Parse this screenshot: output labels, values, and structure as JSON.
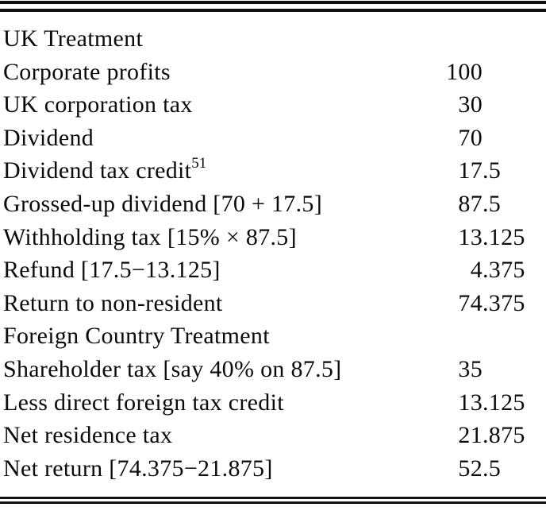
{
  "rows": [
    {
      "label": "UK Treatment",
      "sup": "",
      "int": "",
      "frac": ""
    },
    {
      "label": "Corporate profits",
      "sup": "",
      "int": "100",
      "frac": ""
    },
    {
      "label": "UK corporation tax",
      "sup": "",
      "int": "30",
      "frac": ""
    },
    {
      "label": "Dividend",
      "sup": "",
      "int": "70",
      "frac": ""
    },
    {
      "label": "Dividend tax credit",
      "sup": "51",
      "int": "17",
      "frac": ".5"
    },
    {
      "label": "Grossed-up dividend [70 + 17.5]",
      "sup": "",
      "int": "87",
      "frac": ".5"
    },
    {
      "label": "Withholding tax [15% × 87.5]",
      "sup": "",
      "int": "13",
      "frac": ".125"
    },
    {
      "label": "Refund [17.5−13.125]",
      "sup": "",
      "int": "4",
      "frac": ".375"
    },
    {
      "label": "Return to non-resident",
      "sup": "",
      "int": "74",
      "frac": ".375"
    },
    {
      "label": "Foreign Country Treatment",
      "sup": "",
      "int": "",
      "frac": ""
    },
    {
      "label": "Shareholder tax [say 40% on 87.5]",
      "sup": "",
      "int": "35",
      "frac": ""
    },
    {
      "label": "Less direct foreign tax credit",
      "sup": "",
      "int": "13",
      "frac": ".125"
    },
    {
      "label": "Net residence tax",
      "sup": "",
      "int": "21",
      "frac": ".875"
    },
    {
      "label": "Net return [74.375−21.875]",
      "sup": "",
      "int": "52",
      "frac": ".5"
    }
  ],
  "colors": {
    "rule": "#111111",
    "text": "#0b0b0b",
    "background": "#ffffff"
  }
}
